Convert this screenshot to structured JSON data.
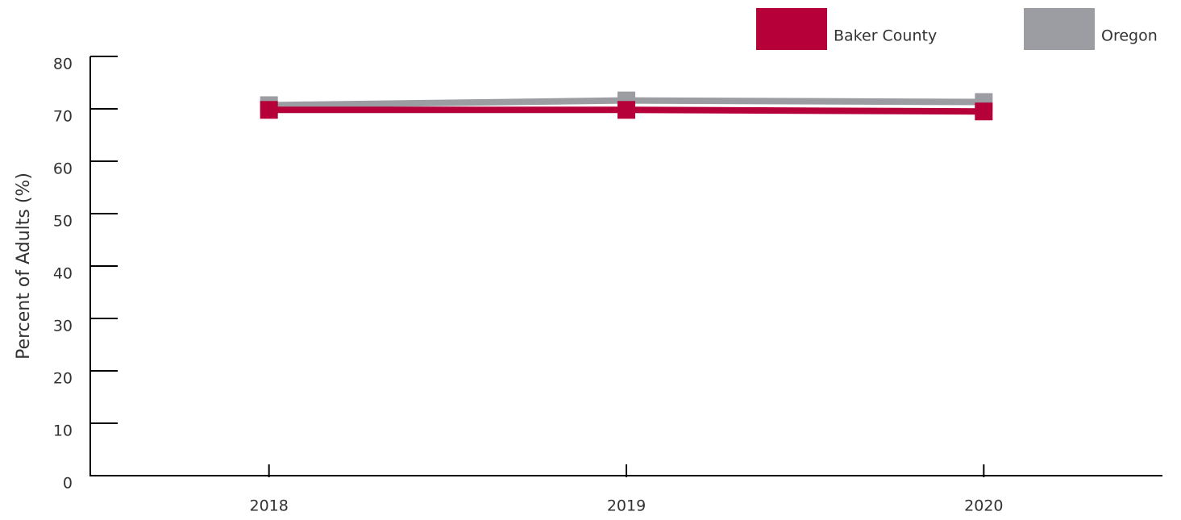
{
  "chart_data": {
    "type": "line",
    "y_label": "Percent of Adults (%)",
    "categories": [
      "2018",
      "2019",
      "2020"
    ],
    "series": [
      {
        "name": "Baker County",
        "color": "#b5003a",
        "values": [
          69.8,
          69.8,
          69.5
        ]
      },
      {
        "name": "Oregon",
        "color": "#9b9da3",
        "values": [
          70.7,
          71.6,
          71.3
        ]
      }
    ],
    "ylim": [
      0,
      80
    ],
    "yticks": [
      0,
      10,
      20,
      30,
      40,
      50,
      60,
      70,
      80
    ]
  }
}
